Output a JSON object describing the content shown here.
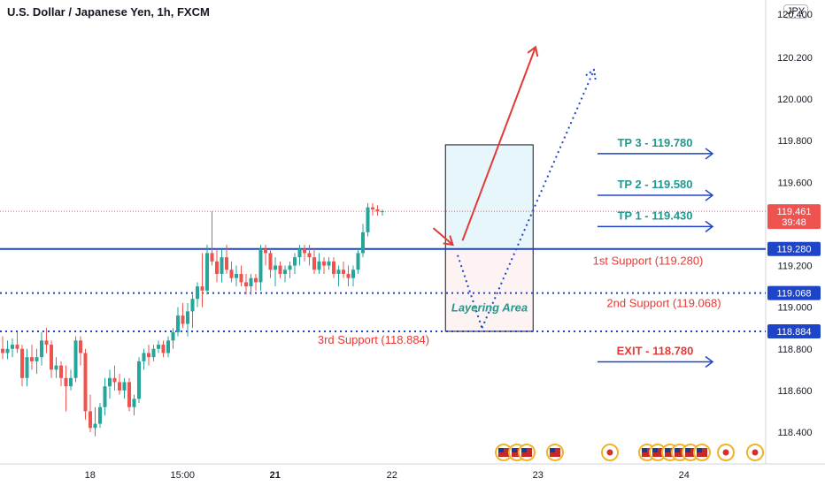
{
  "header": {
    "title": "U.S. Dollar / Japanese Yen, 1h, FXCM",
    "currency_badge": "JPY"
  },
  "chart_data": {
    "type": "candlestick",
    "title": "U.S. Dollar / Japanese Yen, 1h, FXCM",
    "ylim": [
      118.3,
      120.45
    ],
    "y_ticks": [
      "120.200",
      "120.000",
      "119.800",
      "119.600",
      "119.200",
      "119.000",
      "118.800",
      "118.600",
      "118.400"
    ],
    "x_ticks": [
      {
        "label": "18",
        "bold": false,
        "i": 18.5
      },
      {
        "label": "15:00",
        "bold": false,
        "i": 37.5
      },
      {
        "label": "21",
        "bold": true,
        "i": 56.5
      },
      {
        "label": "22",
        "bold": false,
        "i": 80.5
      },
      {
        "label": "23",
        "bold": false,
        "i": 110.5
      },
      {
        "label": "24",
        "bold": false,
        "i": 140.5
      }
    ],
    "x_max_index": 153,
    "candles": [
      [
        118.8,
        118.86,
        118.75,
        118.78
      ],
      [
        118.78,
        118.84,
        118.75,
        118.8
      ],
      [
        118.8,
        118.85,
        118.76,
        118.82
      ],
      [
        118.82,
        118.88,
        118.78,
        118.8
      ],
      [
        118.8,
        118.82,
        118.62,
        118.66
      ],
      [
        118.66,
        118.8,
        118.62,
        118.76
      ],
      [
        118.76,
        118.82,
        118.7,
        118.74
      ],
      [
        118.74,
        118.8,
        118.68,
        118.76
      ],
      [
        118.76,
        118.88,
        118.72,
        118.84
      ],
      [
        118.84,
        118.9,
        118.78,
        118.82
      ],
      [
        118.82,
        118.84,
        118.66,
        118.7
      ],
      [
        118.7,
        118.76,
        118.66,
        118.72
      ],
      [
        118.72,
        118.74,
        118.62,
        118.66
      ],
      [
        118.66,
        118.72,
        118.5,
        118.62
      ],
      [
        118.62,
        118.7,
        118.6,
        118.66
      ],
      [
        118.66,
        118.86,
        118.64,
        118.84
      ],
      [
        118.84,
        118.86,
        118.72,
        118.78
      ],
      [
        118.78,
        118.8,
        118.46,
        118.5
      ],
      [
        118.5,
        118.58,
        118.4,
        118.42
      ],
      [
        118.42,
        118.52,
        118.38,
        118.44
      ],
      [
        118.44,
        118.54,
        118.42,
        118.52
      ],
      [
        118.52,
        118.66,
        118.48,
        118.62
      ],
      [
        118.62,
        118.7,
        118.56,
        118.66
      ],
      [
        118.66,
        118.72,
        118.6,
        118.64
      ],
      [
        118.64,
        118.68,
        118.58,
        118.6
      ],
      [
        118.6,
        118.66,
        118.56,
        118.64
      ],
      [
        118.64,
        118.66,
        118.5,
        118.52
      ],
      [
        118.52,
        118.58,
        118.48,
        118.56
      ],
      [
        118.56,
        118.76,
        118.54,
        118.74
      ],
      [
        118.74,
        118.8,
        118.7,
        118.78
      ],
      [
        118.78,
        118.82,
        118.72,
        118.76
      ],
      [
        118.76,
        118.82,
        118.74,
        118.8
      ],
      [
        118.8,
        118.84,
        118.78,
        118.82
      ],
      [
        118.82,
        118.84,
        118.76,
        118.78
      ],
      [
        118.78,
        118.86,
        118.76,
        118.84
      ],
      [
        118.84,
        118.9,
        118.8,
        118.88
      ],
      [
        118.88,
        119.0,
        118.86,
        118.96
      ],
      [
        118.96,
        119.02,
        118.9,
        118.92
      ],
      [
        118.92,
        119.02,
        118.86,
        118.98
      ],
      [
        118.98,
        119.06,
        118.9,
        119.04
      ],
      [
        119.04,
        119.12,
        119.0,
        119.1
      ],
      [
        119.1,
        119.26,
        119.0,
        119.08
      ],
      [
        119.08,
        119.3,
        119.06,
        119.26
      ],
      [
        119.26,
        119.46,
        119.2,
        119.22
      ],
      [
        119.22,
        119.28,
        119.12,
        119.16
      ],
      [
        119.16,
        119.28,
        119.12,
        119.24
      ],
      [
        119.24,
        119.3,
        119.16,
        119.18
      ],
      [
        119.18,
        119.22,
        119.12,
        119.14
      ],
      [
        119.14,
        119.2,
        119.1,
        119.16
      ],
      [
        119.16,
        119.2,
        119.1,
        119.12
      ],
      [
        119.12,
        119.16,
        119.06,
        119.1
      ],
      [
        119.1,
        119.16,
        119.06,
        119.14
      ],
      [
        119.14,
        119.16,
        119.08,
        119.12
      ],
      [
        119.12,
        119.3,
        119.08,
        119.28
      ],
      [
        119.28,
        119.3,
        119.2,
        119.26
      ],
      [
        119.26,
        119.28,
        119.14,
        119.18
      ],
      [
        119.18,
        119.24,
        119.1,
        119.2
      ],
      [
        119.2,
        119.22,
        119.14,
        119.16
      ],
      [
        119.16,
        119.2,
        119.12,
        119.18
      ],
      [
        119.18,
        119.22,
        119.14,
        119.2
      ],
      [
        119.2,
        119.26,
        119.16,
        119.24
      ],
      [
        119.24,
        119.3,
        119.2,
        119.28
      ],
      [
        119.28,
        119.3,
        119.22,
        119.26
      ],
      [
        119.26,
        119.3,
        119.2,
        119.24
      ],
      [
        119.24,
        119.28,
        119.16,
        119.18
      ],
      [
        119.18,
        119.26,
        119.16,
        119.22
      ],
      [
        119.22,
        119.24,
        119.16,
        119.2
      ],
      [
        119.2,
        119.24,
        119.18,
        119.22
      ],
      [
        119.22,
        119.24,
        119.14,
        119.16
      ],
      [
        119.16,
        119.2,
        119.1,
        119.18
      ],
      [
        119.18,
        119.22,
        119.14,
        119.16
      ],
      [
        119.16,
        119.2,
        119.1,
        119.14
      ],
      [
        119.14,
        119.2,
        119.1,
        119.18
      ],
      [
        119.18,
        119.28,
        119.16,
        119.26
      ],
      [
        119.26,
        119.4,
        119.24,
        119.36
      ],
      [
        119.36,
        119.5,
        119.34,
        119.48
      ],
      [
        119.48,
        119.5,
        119.44,
        119.47
      ],
      [
        119.47,
        119.49,
        119.44,
        119.46
      ],
      [
        119.46,
        119.47,
        119.44,
        119.461
      ]
    ],
    "horizontal_lines": [
      {
        "price": 119.461,
        "style": "dotted",
        "color": "#ef5350"
      },
      {
        "price": 119.28,
        "style": "solid",
        "color": "#1e45c8"
      },
      {
        "price": 119.068,
        "style": "dotted",
        "color": "#1e45c8"
      },
      {
        "price": 118.884,
        "style": "dotted",
        "color": "#1e45c8"
      }
    ],
    "price_labels": [
      {
        "text": "119.461",
        "sub": "39:48",
        "price": 119.461,
        "color": "#ef5350"
      },
      {
        "text": "119.280",
        "sub": "",
        "price": 119.28,
        "color": "#1e45c8"
      },
      {
        "text": "119.068",
        "sub": "",
        "price": 119.068,
        "color": "#1e45c8"
      },
      {
        "text": "118.884",
        "sub": "",
        "price": 118.884,
        "color": "#1e45c8"
      }
    ],
    "targets": [
      {
        "text": "TP 3 - 119.780",
        "price": 119.78,
        "color": "#22998e"
      },
      {
        "text": "TP 2 - 119.580",
        "price": 119.58,
        "color": "#22998e"
      },
      {
        "text": "TP 1 - 119.430",
        "price": 119.43,
        "color": "#22998e"
      },
      {
        "text": "EXIT - 118.780",
        "price": 118.78,
        "color": "#e53935"
      }
    ],
    "supports": [
      {
        "text": "1st Support (119.280)",
        "price": 119.28
      },
      {
        "text": "2nd Support (119.068)",
        "price": 119.068
      },
      {
        "text": "3rd Support (118.884)",
        "price": 118.884
      }
    ],
    "layering_label": "Layering Area",
    "box": {
      "i0": 91.5,
      "i1": 109.5,
      "top": 119.78,
      "mid": 119.28,
      "bottom": 118.884
    }
  },
  "colors": {
    "up": "#26a69a",
    "down": "#ef5350",
    "blue": "#1e45c8",
    "box_fill": "#e6f6fb",
    "box_fill_low": "#fdf3f3"
  },
  "events_count": 14
}
